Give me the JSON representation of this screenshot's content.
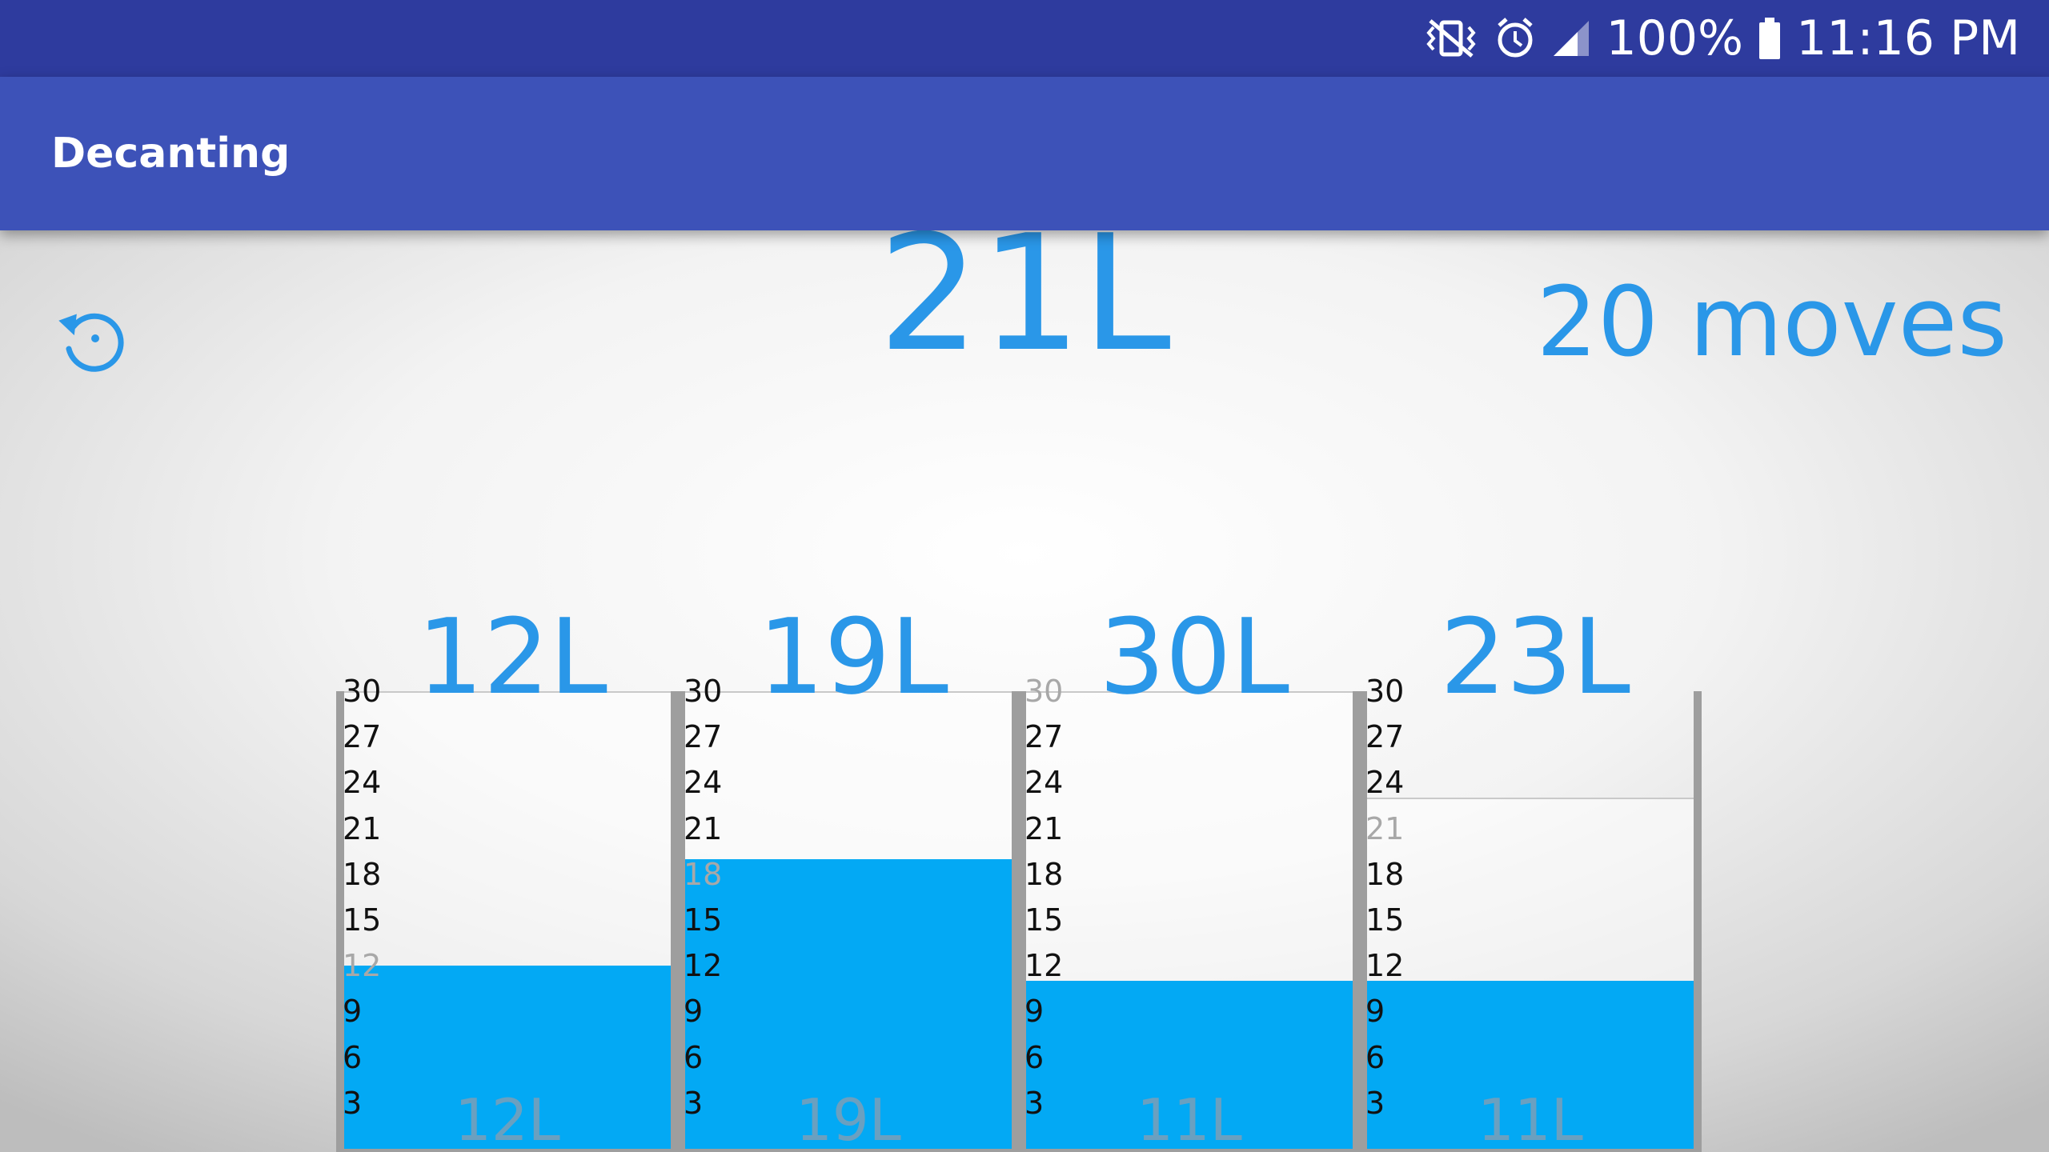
{
  "status_bar": {
    "battery": "100%",
    "time": "11:16 PM"
  },
  "app_bar": {
    "title": "Decanting"
  },
  "game": {
    "target": "21L",
    "moves": "20 moves",
    "containers": [
      {
        "label": "12L",
        "capacity": 30,
        "level": 12,
        "amount": "12L"
      },
      {
        "label": "19L",
        "capacity": 30,
        "level": 19,
        "amount": "19L"
      },
      {
        "label": "30L",
        "capacity": 30,
        "level": 11,
        "amount": "11L"
      },
      {
        "label": "23L",
        "capacity": 23,
        "level": 11,
        "amount": "11L"
      }
    ],
    "ticks": [
      "30",
      "27",
      "24",
      "21",
      "18",
      "15",
      "12",
      "9",
      "6",
      "3"
    ]
  },
  "colors": {
    "status_bar": "#2e3b9e",
    "app_bar": "#3d52b8",
    "accent": "#2a97e8",
    "liquid": "#03a9f4"
  }
}
